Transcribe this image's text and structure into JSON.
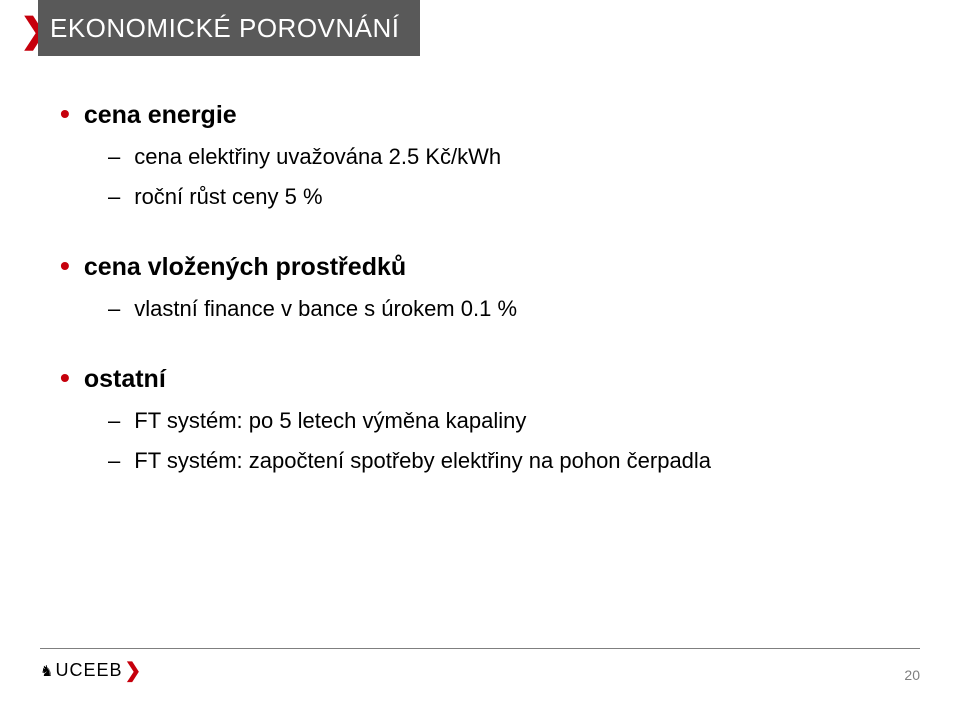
{
  "header": {
    "arrow_color": "#c6000c",
    "band_background": "#595959",
    "title": "EKONOMICKÉ POROVNÁNÍ",
    "title_color": "#ffffff"
  },
  "bullets": {
    "top_bullet_char": "•",
    "top_bullet_color": "#c6000c",
    "dash_char": "–",
    "items": [
      {
        "label": "cena energie",
        "subitems": [
          "cena elektřiny uvažována 2.5 Kč/kWh",
          "roční růst ceny 5 %"
        ]
      },
      {
        "label": "cena vložených prostředků",
        "subitems": [
          "vlastní finance v bance s úrokem 0.1 %"
        ]
      },
      {
        "label": "ostatní",
        "subitems": [
          "FT systém: po 5 letech výměna kapaliny",
          "FT systém: započtení spotřeby elektřiny na pohon čerpadla"
        ]
      }
    ]
  },
  "footer": {
    "logo_lion": "♞",
    "logo_text": "UCEEB",
    "red_angle": "❯",
    "line_color": "#7f7f7f",
    "page_number": "20",
    "page_number_color": "#7f7f7f"
  }
}
